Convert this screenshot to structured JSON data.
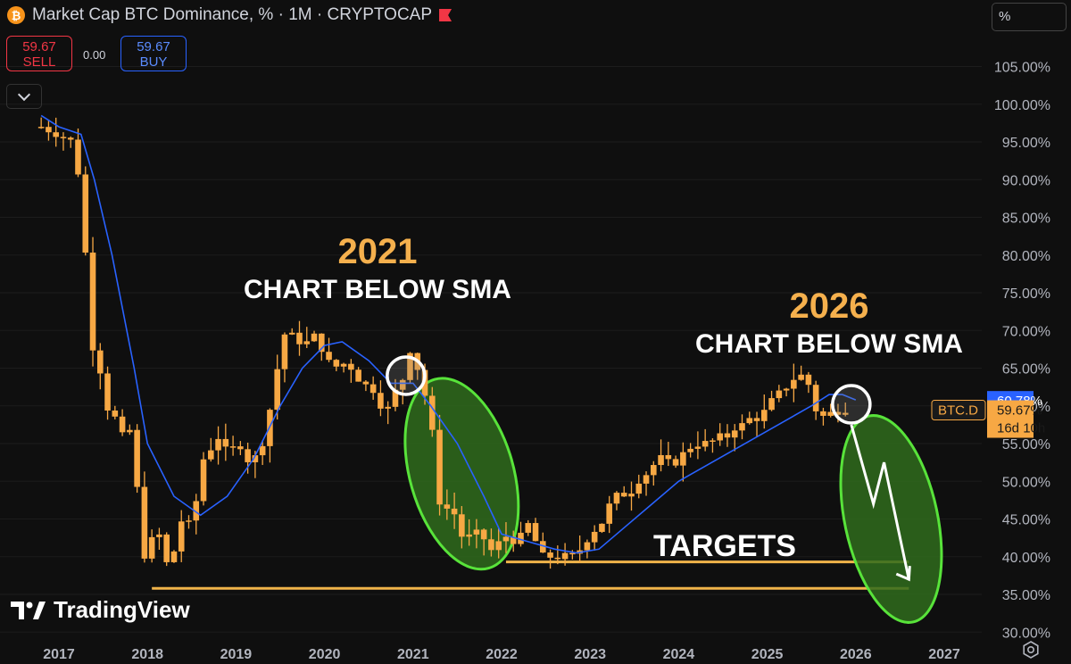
{
  "header": {
    "title": "Market Cap BTC Dominance, % · 1M · CRYPTOCAP",
    "sell_price": "59.67",
    "sell_label": "SELL",
    "spread": "0.00",
    "buy_price": "59.67",
    "buy_label": "BUY",
    "scale_label": "%"
  },
  "branding": {
    "logo_text": "TradingView"
  },
  "colors": {
    "background": "#0f0f0f",
    "candle": "#f7a844",
    "sma": "#2962ff",
    "target_line": "#f0b44a",
    "ellipse": "#58e33a",
    "annotation_year": "#f5b04d",
    "annotation_text": "#ffffff",
    "axis_text": "#b2b5be"
  },
  "chart_data": {
    "type": "candlestick",
    "title": "Market Cap BTC Dominance, % · 1M · CRYPTOCAP",
    "symbol": "BTC.D",
    "interval": "1M",
    "y_axis": {
      "unit": "%",
      "range": [
        30,
        108
      ],
      "ticks": [
        "105.00%",
        "100.00%",
        "95.00%",
        "90.00%",
        "85.00%",
        "80.00%",
        "75.00%",
        "70.00%",
        "65.00%",
        "60.00%",
        "55.00%",
        "50.00%",
        "45.00%",
        "40.00%",
        "35.00%",
        "30.00%"
      ]
    },
    "x_axis": {
      "range": [
        2016.8,
        2027.4
      ],
      "ticks": [
        "2017",
        "2018",
        "2019",
        "2020",
        "2021",
        "2022",
        "2023",
        "2024",
        "2025",
        "2026",
        "2027"
      ]
    },
    "price_labels": {
      "sma_value": "60.78%",
      "symbol": "BTC.D",
      "last_price": "59.67%",
      "countdown": "16d 10h"
    },
    "series": [
      {
        "name": "BTC.D",
        "kind": "candles",
        "anchors": [
          [
            2016.8,
            97
          ],
          [
            2017.0,
            96
          ],
          [
            2017.15,
            95
          ],
          [
            2017.25,
            89
          ],
          [
            2017.33,
            75
          ],
          [
            2017.42,
            63
          ],
          [
            2017.5,
            66
          ],
          [
            2017.58,
            56
          ],
          [
            2017.67,
            60
          ],
          [
            2017.75,
            53
          ],
          [
            2017.83,
            59
          ],
          [
            2017.92,
            42
          ],
          [
            2018.0,
            39
          ],
          [
            2018.08,
            44
          ],
          [
            2018.17,
            42
          ],
          [
            2018.25,
            37
          ],
          [
            2018.33,
            43
          ],
          [
            2018.42,
            46
          ],
          [
            2018.5,
            43
          ],
          [
            2018.58,
            50
          ],
          [
            2018.67,
            55
          ],
          [
            2018.75,
            54
          ],
          [
            2018.83,
            57
          ],
          [
            2018.92,
            52
          ],
          [
            2019.0,
            56
          ],
          [
            2019.17,
            52
          ],
          [
            2019.33,
            56
          ],
          [
            2019.42,
            62
          ],
          [
            2019.5,
            67
          ],
          [
            2019.58,
            71
          ],
          [
            2019.67,
            68
          ],
          [
            2019.75,
            69
          ],
          [
            2019.83,
            68
          ],
          [
            2019.92,
            70
          ],
          [
            2020.0,
            66
          ],
          [
            2020.17,
            65
          ],
          [
            2020.25,
            66
          ],
          [
            2020.42,
            63
          ],
          [
            2020.58,
            62
          ],
          [
            2020.67,
            59
          ],
          [
            2020.75,
            60
          ],
          [
            2020.83,
            63
          ],
          [
            2020.92,
            64
          ],
          [
            2021.0,
            70
          ],
          [
            2021.08,
            62
          ],
          [
            2021.17,
            61
          ],
          [
            2021.25,
            53
          ],
          [
            2021.33,
            44
          ],
          [
            2021.42,
            48
          ],
          [
            2021.5,
            44
          ],
          [
            2021.58,
            42
          ],
          [
            2021.67,
            43
          ],
          [
            2021.75,
            43
          ],
          [
            2021.83,
            42
          ],
          [
            2021.92,
            40
          ],
          [
            2022.0,
            43
          ],
          [
            2022.17,
            42
          ],
          [
            2022.25,
            43
          ],
          [
            2022.33,
            45
          ],
          [
            2022.42,
            40
          ],
          [
            2022.5,
            40
          ],
          [
            2022.67,
            40
          ],
          [
            2022.83,
            40
          ],
          [
            2023.0,
            43
          ],
          [
            2023.17,
            45
          ],
          [
            2023.25,
            48
          ],
          [
            2023.33,
            48
          ],
          [
            2023.5,
            49
          ],
          [
            2023.58,
            51
          ],
          [
            2023.67,
            51
          ],
          [
            2023.75,
            53
          ],
          [
            2023.83,
            53
          ],
          [
            2023.92,
            52
          ],
          [
            2024.0,
            53
          ],
          [
            2024.17,
            55
          ],
          [
            2024.33,
            55
          ],
          [
            2024.5,
            56
          ],
          [
            2024.58,
            56
          ],
          [
            2024.67,
            58
          ],
          [
            2024.75,
            57
          ],
          [
            2024.83,
            59
          ],
          [
            2024.92,
            58
          ],
          [
            2025.0,
            60
          ],
          [
            2025.17,
            62
          ],
          [
            2025.33,
            64
          ],
          [
            2025.42,
            64
          ],
          [
            2025.5,
            62
          ],
          [
            2025.58,
            58
          ],
          [
            2025.67,
            59
          ],
          [
            2025.75,
            59
          ],
          [
            2025.83,
            59.67
          ],
          [
            2025.92,
            59.67
          ]
        ]
      },
      {
        "name": "SMA",
        "kind": "line",
        "points": [
          [
            2016.8,
            98.5
          ],
          [
            2017.0,
            97
          ],
          [
            2017.25,
            96
          ],
          [
            2017.4,
            90
          ],
          [
            2017.6,
            80
          ],
          [
            2017.85,
            65
          ],
          [
            2018.0,
            55
          ],
          [
            2018.3,
            48
          ],
          [
            2018.6,
            45.5
          ],
          [
            2018.9,
            48
          ],
          [
            2019.2,
            53
          ],
          [
            2019.5,
            60
          ],
          [
            2019.75,
            65
          ],
          [
            2020.0,
            68
          ],
          [
            2020.2,
            68.5
          ],
          [
            2020.5,
            66
          ],
          [
            2020.75,
            63
          ],
          [
            2021.0,
            63
          ],
          [
            2021.2,
            60
          ],
          [
            2021.5,
            55
          ],
          [
            2021.8,
            48
          ],
          [
            2022.0,
            43
          ],
          [
            2022.3,
            42
          ],
          [
            2022.6,
            41
          ],
          [
            2022.85,
            40.5
          ],
          [
            2023.1,
            41
          ],
          [
            2023.4,
            44
          ],
          [
            2023.7,
            47
          ],
          [
            2024.0,
            50
          ],
          [
            2024.3,
            52
          ],
          [
            2024.6,
            54
          ],
          [
            2024.9,
            56
          ],
          [
            2025.2,
            58
          ],
          [
            2025.5,
            60
          ],
          [
            2025.7,
            61.5
          ],
          [
            2025.85,
            61.5
          ],
          [
            2026.0,
            60.78
          ]
        ]
      }
    ],
    "annotations": [
      {
        "year": "2021",
        "text": "CHART BELOW SMA"
      },
      {
        "year": "2026",
        "text": "CHART BELOW SMA"
      },
      {
        "text": "TARGETS"
      }
    ],
    "target_levels": [
      39.3,
      35.8
    ]
  }
}
